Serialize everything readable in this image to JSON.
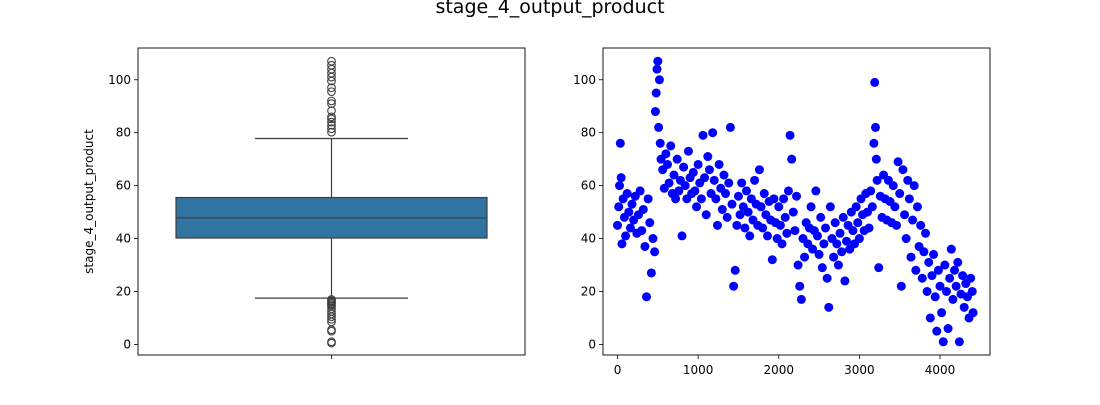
{
  "figure": {
    "title": "stage_4_output_product"
  },
  "chart_data": [
    {
      "type": "box",
      "ylabel": "stage_4_output_product",
      "ylim": [
        -4,
        112
      ],
      "yticks": [
        0,
        20,
        40,
        60,
        80,
        100
      ],
      "xticks": [
        ""
      ],
      "box_color": "#3274a1",
      "box": {
        "whisker_low": 17.5,
        "q1": 40.2,
        "median": 47.8,
        "q3": 55.5,
        "whisker_high": 77.8
      },
      "outliers": [
        80.2,
        81.5,
        82.8,
        84.0,
        85.2,
        86.0,
        88.3,
        91.0,
        92.0,
        95.5,
        97.0,
        99.5,
        101.0,
        102.5,
        104.0,
        105.5,
        107.0,
        0.5,
        1.0,
        5.0,
        5.5,
        8.5,
        9.5,
        10.5,
        11.5,
        12.5,
        13.5,
        14.5,
        15.0,
        15.5,
        16.0,
        16.5,
        17.0
      ]
    },
    {
      "type": "scatter",
      "color": "#0000ff",
      "xlim": [
        -180,
        4620
      ],
      "ylim": [
        -4,
        112
      ],
      "xticks": [
        0,
        1000,
        2000,
        3000,
        4000
      ],
      "yticks": [
        0,
        20,
        40,
        60,
        80,
        100
      ],
      "points": [
        [
          0,
          45
        ],
        [
          15,
          52
        ],
        [
          25,
          60
        ],
        [
          35,
          76
        ],
        [
          45,
          63
        ],
        [
          55,
          38
        ],
        [
          70,
          55
        ],
        [
          85,
          48
        ],
        [
          100,
          41
        ],
        [
          120,
          57
        ],
        [
          140,
          50
        ],
        [
          160,
          44
        ],
        [
          180,
          53
        ],
        [
          200,
          47
        ],
        [
          220,
          56
        ],
        [
          240,
          42
        ],
        [
          260,
          49
        ],
        [
          280,
          58
        ],
        [
          300,
          43
        ],
        [
          320,
          51
        ],
        [
          340,
          37
        ],
        [
          360,
          18
        ],
        [
          380,
          55
        ],
        [
          400,
          46
        ],
        [
          420,
          27
        ],
        [
          440,
          40
        ],
        [
          460,
          35
        ],
        [
          470,
          88
        ],
        [
          480,
          95
        ],
        [
          490,
          104
        ],
        [
          500,
          107
        ],
        [
          510,
          82
        ],
        [
          520,
          100
        ],
        [
          530,
          76
        ],
        [
          540,
          70
        ],
        [
          560,
          66
        ],
        [
          580,
          59
        ],
        [
          600,
          72
        ],
        [
          620,
          68
        ],
        [
          640,
          61
        ],
        [
          660,
          75
        ],
        [
          680,
          57
        ],
        [
          700,
          64
        ],
        [
          720,
          55
        ],
        [
          740,
          70
        ],
        [
          760,
          58
        ],
        [
          780,
          62
        ],
        [
          800,
          41
        ],
        [
          820,
          67
        ],
        [
          840,
          60
        ],
        [
          860,
          55
        ],
        [
          880,
          73
        ],
        [
          900,
          63
        ],
        [
          920,
          57
        ],
        [
          940,
          65
        ],
        [
          960,
          58
        ],
        [
          980,
          52
        ],
        [
          1000,
          68
        ],
        [
          1020,
          61
        ],
        [
          1040,
          55
        ],
        [
          1060,
          79
        ],
        [
          1080,
          63
        ],
        [
          1100,
          49
        ],
        [
          1120,
          71
        ],
        [
          1140,
          66
        ],
        [
          1160,
          57
        ],
        [
          1180,
          80
        ],
        [
          1200,
          62
        ],
        [
          1220,
          55
        ],
        [
          1240,
          45
        ],
        [
          1260,
          68
        ],
        [
          1280,
          59
        ],
        [
          1300,
          51
        ],
        [
          1320,
          64
        ],
        [
          1340,
          57
        ],
        [
          1360,
          48
        ],
        [
          1380,
          61
        ],
        [
          1400,
          82
        ],
        [
          1420,
          53
        ],
        [
          1440,
          22
        ],
        [
          1460,
          28
        ],
        [
          1480,
          45
        ],
        [
          1500,
          56
        ],
        [
          1520,
          49
        ],
        [
          1540,
          61
        ],
        [
          1560,
          52
        ],
        [
          1580,
          44
        ],
        [
          1600,
          58
        ],
        [
          1620,
          50
        ],
        [
          1640,
          41
        ],
        [
          1660,
          55
        ],
        [
          1680,
          47
        ],
        [
          1700,
          62
        ],
        [
          1720,
          53
        ],
        [
          1740,
          45
        ],
        [
          1760,
          66
        ],
        [
          1780,
          52
        ],
        [
          1800,
          44
        ],
        [
          1820,
          57
        ],
        [
          1840,
          49
        ],
        [
          1860,
          41
        ],
        [
          1880,
          54
        ],
        [
          1900,
          47
        ],
        [
          1920,
          32
        ],
        [
          1940,
          55
        ],
        [
          1960,
          46
        ],
        [
          1980,
          40
        ],
        [
          2000,
          52
        ],
        [
          2020,
          45
        ],
        [
          2040,
          38
        ],
        [
          2060,
          55
        ],
        [
          2080,
          48
        ],
        [
          2100,
          42
        ],
        [
          2120,
          58
        ],
        [
          2140,
          79
        ],
        [
          2160,
          70
        ],
        [
          2180,
          50
        ],
        [
          2200,
          43
        ],
        [
          2220,
          56
        ],
        [
          2240,
          30
        ],
        [
          2260,
          22
        ],
        [
          2280,
          17
        ],
        [
          2300,
          40
        ],
        [
          2320,
          33
        ],
        [
          2340,
          46
        ],
        [
          2360,
          38
        ],
        [
          2380,
          44
        ],
        [
          2400,
          52
        ],
        [
          2420,
          36
        ],
        [
          2440,
          43
        ],
        [
          2460,
          58
        ],
        [
          2480,
          41
        ],
        [
          2500,
          34
        ],
        [
          2520,
          48
        ],
        [
          2540,
          29
        ],
        [
          2560,
          38
        ],
        [
          2580,
          44
        ],
        [
          2600,
          25
        ],
        [
          2620,
          14
        ],
        [
          2640,
          52
        ],
        [
          2660,
          40
        ],
        [
          2680,
          33
        ],
        [
          2700,
          46
        ],
        [
          2720,
          38
        ],
        [
          2740,
          30
        ],
        [
          2760,
          42
        ],
        [
          2780,
          35
        ],
        [
          2800,
          48
        ],
        [
          2820,
          24
        ],
        [
          2840,
          39
        ],
        [
          2860,
          45
        ],
        [
          2880,
          36
        ],
        [
          2900,
          50
        ],
        [
          2920,
          43
        ],
        [
          2940,
          38
        ],
        [
          2960,
          52
        ],
        [
          2980,
          46
        ],
        [
          3000,
          40
        ],
        [
          3020,
          55
        ],
        [
          3040,
          49
        ],
        [
          3060,
          43
        ],
        [
          3080,
          57
        ],
        [
          3100,
          50
        ],
        [
          3120,
          44
        ],
        [
          3140,
          58
        ],
        [
          3160,
          52
        ],
        [
          3180,
          76
        ],
        [
          3190,
          99
        ],
        [
          3200,
          82
        ],
        [
          3210,
          70
        ],
        [
          3220,
          62
        ],
        [
          3240,
          29
        ],
        [
          3260,
          56
        ],
        [
          3280,
          48
        ],
        [
          3300,
          64
        ],
        [
          3320,
          55
        ],
        [
          3340,
          47
        ],
        [
          3360,
          62
        ],
        [
          3380,
          54
        ],
        [
          3400,
          46
        ],
        [
          3420,
          60
        ],
        [
          3440,
          52
        ],
        [
          3460,
          45
        ],
        [
          3480,
          69
        ],
        [
          3500,
          57
        ],
        [
          3520,
          22
        ],
        [
          3540,
          66
        ],
        [
          3560,
          49
        ],
        [
          3580,
          40
        ],
        [
          3600,
          62
        ],
        [
          3620,
          55
        ],
        [
          3640,
          33
        ],
        [
          3660,
          47
        ],
        [
          3680,
          60
        ],
        [
          3700,
          28
        ],
        [
          3720,
          52
        ],
        [
          3740,
          37
        ],
        [
          3760,
          45
        ],
        [
          3780,
          25
        ],
        [
          3800,
          35
        ],
        [
          3820,
          42
        ],
        [
          3840,
          20
        ],
        [
          3860,
          31
        ],
        [
          3880,
          10
        ],
        [
          3900,
          26
        ],
        [
          3920,
          34
        ],
        [
          3940,
          18
        ],
        [
          3960,
          5
        ],
        [
          3980,
          28
        ],
        [
          4000,
          22
        ],
        [
          4020,
          12
        ],
        [
          4040,
          1
        ],
        [
          4060,
          30
        ],
        [
          4080,
          20
        ],
        [
          4100,
          6
        ],
        [
          4120,
          25
        ],
        [
          4140,
          36
        ],
        [
          4160,
          17
        ],
        [
          4180,
          28
        ],
        [
          4200,
          22
        ],
        [
          4220,
          31
        ],
        [
          4240,
          1
        ],
        [
          4260,
          19
        ],
        [
          4280,
          26
        ],
        [
          4300,
          14
        ],
        [
          4320,
          23
        ],
        [
          4340,
          18
        ],
        [
          4360,
          10
        ],
        [
          4380,
          25
        ],
        [
          4400,
          20
        ],
        [
          4410,
          12
        ]
      ]
    }
  ]
}
